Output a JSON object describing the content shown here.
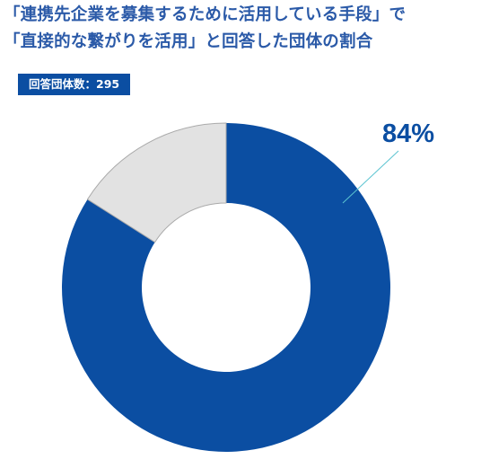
{
  "title_lines": [
    "「連携先企業を募集するために活用している手段」で",
    "「直接的な繋がりを活用」と回答した団体の割合"
  ],
  "badge": {
    "text": "回答団体数：295"
  },
  "colors": {
    "title": "#2b5aa8",
    "badge_bg": "#0b4ea2",
    "primary_slice": "#0b4ea2",
    "secondary_slice": "#e2e2e2",
    "slice_border": "#aaaaaa",
    "leader_line": "#5bc4d1"
  },
  "chart_data": {
    "type": "pie",
    "donut": true,
    "slices": [
      {
        "value": 84,
        "label": "84%",
        "color": "#0b4ea2"
      },
      {
        "value": 16,
        "label": "",
        "color": "#e2e2e2"
      }
    ]
  }
}
